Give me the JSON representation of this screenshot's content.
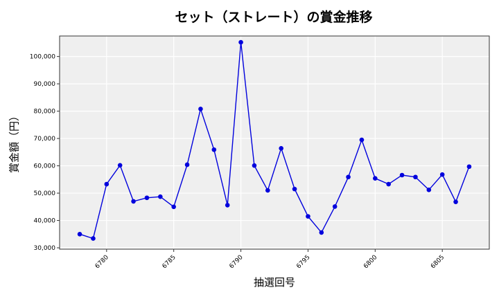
{
  "chart_data": {
    "type": "line",
    "title": "セット（ストレート）の賞金推移",
    "xlabel": "抽選回号",
    "ylabel": "賞金額（円）",
    "x_ticks": [
      6780,
      6785,
      6790,
      6795,
      6800,
      6805
    ],
    "y_ticks": [
      30000,
      40000,
      50000,
      60000,
      70000,
      80000,
      90000,
      100000
    ],
    "xlim": [
      6776.5,
      6808.5
    ],
    "ylim": [
      29500,
      107500
    ],
    "grid": true,
    "series": [
      {
        "color": "#0000dd",
        "points": [
          {
            "x": 6778,
            "y": 35000
          },
          {
            "x": 6779,
            "y": 33400
          },
          {
            "x": 6780,
            "y": 53300
          },
          {
            "x": 6781,
            "y": 60200
          },
          {
            "x": 6782,
            "y": 47000
          },
          {
            "x": 6783,
            "y": 48300
          },
          {
            "x": 6784,
            "y": 48700
          },
          {
            "x": 6785,
            "y": 45000
          },
          {
            "x": 6786,
            "y": 60400
          },
          {
            "x": 6787,
            "y": 80800
          },
          {
            "x": 6788,
            "y": 65900
          },
          {
            "x": 6789,
            "y": 45600
          },
          {
            "x": 6790,
            "y": 105200
          },
          {
            "x": 6791,
            "y": 60100
          },
          {
            "x": 6792,
            "y": 51000
          },
          {
            "x": 6793,
            "y": 66400
          },
          {
            "x": 6794,
            "y": 51500
          },
          {
            "x": 6795,
            "y": 41500
          },
          {
            "x": 6796,
            "y": 35600
          },
          {
            "x": 6797,
            "y": 45100
          },
          {
            "x": 6798,
            "y": 55900
          },
          {
            "x": 6799,
            "y": 69500
          },
          {
            "x": 6800,
            "y": 55400
          },
          {
            "x": 6801,
            "y": 53300
          },
          {
            "x": 6802,
            "y": 56600
          },
          {
            "x": 6803,
            "y": 55900
          },
          {
            "x": 6804,
            "y": 51200
          },
          {
            "x": 6805,
            "y": 56800
          },
          {
            "x": 6806,
            "y": 46800
          },
          {
            "x": 6807,
            "y": 59700
          }
        ]
      }
    ]
  }
}
